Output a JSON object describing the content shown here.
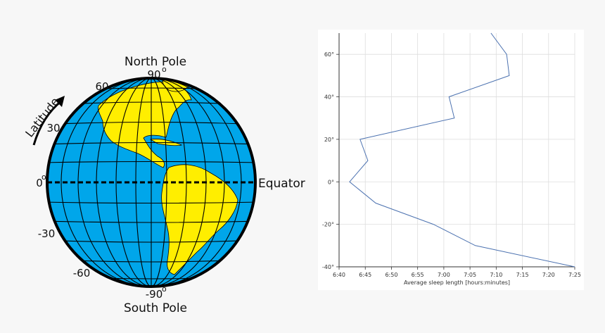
{
  "globe": {
    "north_pole": "North Pole",
    "south_pole": "South Pole",
    "equator": "Equator",
    "latitude": "Latitude",
    "lat_90": "90",
    "lat_60": "60",
    "lat_30": "30",
    "lat_0": "0",
    "lat_m30": "-30",
    "lat_m60": "-60",
    "lat_m90": "-90",
    "degree_mark": "o",
    "colors": {
      "ocean": "#00a6ea",
      "land": "#ffee00",
      "grid": "#000000"
    }
  },
  "chart_data": {
    "type": "line",
    "xlabel": "Average sleep length [hours:minutes]",
    "ylabel": "",
    "x_ticks": [
      "6:40",
      "6:45",
      "6:50",
      "6:55",
      "7:00",
      "7:05",
      "7:10",
      "7:15",
      "7:20",
      "7:25"
    ],
    "y_ticks": [
      "-40°",
      "-20°",
      "0°",
      "20°",
      "40°",
      "60°"
    ],
    "xlim": [
      "6:40",
      "7:25"
    ],
    "ylim": [
      -40,
      70
    ],
    "grid": true,
    "line_color": "#4c72b0",
    "series": [
      {
        "x": [
          "7:09",
          "7:12",
          "7:12.5",
          "7:01",
          "7:02",
          "6:44",
          "6:45.5",
          "6:42",
          "6:47",
          "6:58",
          "7:06",
          "7:25"
        ],
        "y": [
          70,
          60,
          50,
          40,
          30,
          20,
          10,
          0,
          -10,
          -20,
          -30,
          -40
        ]
      }
    ]
  }
}
